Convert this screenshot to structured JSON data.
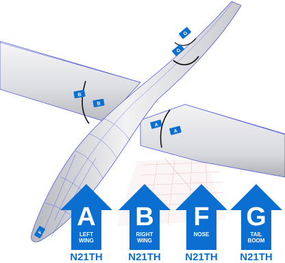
{
  "markers": [
    {
      "letter": "A",
      "label": "LEFT\nWING",
      "registration": "N21TH"
    },
    {
      "letter": "B",
      "label": "RIGHT\nWING",
      "registration": "N21TH"
    },
    {
      "letter": "F",
      "label": "NOSE",
      "registration": "N21TH"
    },
    {
      "letter": "G",
      "label": "TAIL\nBOOM",
      "registration": "N21TH"
    }
  ],
  "tags": {
    "tail_top": "G",
    "tail_lower": "G",
    "left_wing_outer": "B",
    "left_wing_inner": "B",
    "right_wing_inner": "A",
    "right_wing_outer": "A",
    "nose": "F"
  },
  "colors": {
    "accent": "#0a6fd1",
    "airframe": "#e9eaed",
    "panel_lines": "#4a56d8",
    "grid": "#e8a0a0"
  }
}
